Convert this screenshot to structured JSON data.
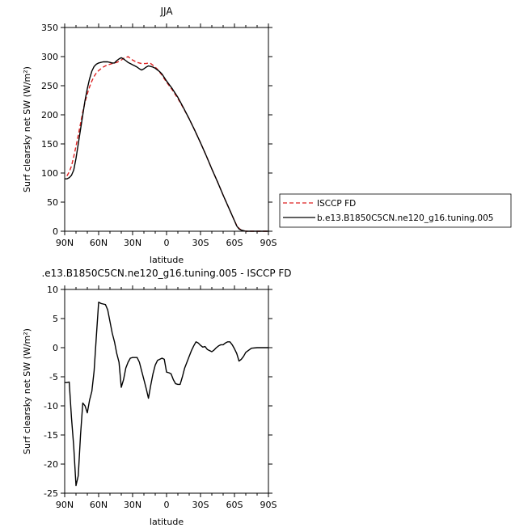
{
  "chart_data": [
    {
      "type": "line",
      "title": "JJA",
      "xlabel": "latitude",
      "ylabel": "Surf clearsky net SW (W/m²)",
      "xlim": [
        90,
        -90
      ],
      "ylim": [
        0,
        350
      ],
      "x_ticks": [
        90,
        60,
        30,
        0,
        -30,
        -60,
        -90
      ],
      "x_tick_labels": [
        "90N",
        "60N",
        "30N",
        "0",
        "30S",
        "60S",
        "90S"
      ],
      "y_ticks": [
        0,
        50,
        100,
        150,
        200,
        250,
        300,
        350
      ],
      "y_tick_labels": [
        "0",
        "50",
        "100",
        "150",
        "200",
        "250",
        "300",
        "350"
      ],
      "legend": {
        "placement": "right",
        "entries": [
          {
            "label": "ISCCP FD",
            "color": "#dd2222",
            "dash": true
          },
          {
            "label": "b.e13.B1850C5CN.ne120_g16.tuning.005",
            "color": "#000000",
            "dash": false
          }
        ]
      },
      "series": [
        {
          "name": "ISCCP FD",
          "color": "#dd2222",
          "dashed": true,
          "x": [
            88,
            86,
            84,
            82,
            80,
            78,
            76,
            74,
            72,
            70,
            68,
            66,
            64,
            62,
            60,
            58,
            56,
            54,
            52,
            50,
            48,
            46,
            44,
            42,
            40,
            38,
            36,
            34,
            32,
            30,
            28,
            26,
            24,
            22,
            20,
            18,
            16,
            14,
            12,
            10,
            8,
            6,
            4,
            2,
            0,
            -5,
            -10,
            -15,
            -20,
            -25,
            -30,
            -35,
            -40,
            -45,
            -50,
            -55,
            -60,
            -62,
            -64,
            -66,
            -68,
            -70,
            -75,
            -80,
            -85,
            -90
          ],
          "y": [
            95,
            102,
            112,
            128,
            146,
            165,
            185,
            205,
            222,
            236,
            248,
            258,
            266,
            272,
            276,
            279,
            282,
            284,
            286,
            287,
            288,
            289,
            290,
            292,
            294,
            297,
            298,
            300,
            297,
            294,
            292,
            290,
            289,
            288,
            288,
            288,
            289,
            288,
            285,
            282,
            278,
            273,
            268,
            262,
            256,
            243,
            228,
            211,
            193,
            173,
            152,
            130,
            107,
            85,
            62,
            40,
            18,
            10,
            5,
            2,
            1,
            0,
            0,
            0,
            0,
            0
          ]
        },
        {
          "name": "b.e13.B1850C5CN.ne120_g16.tuning.005",
          "color": "#000000",
          "dashed": false,
          "x": [
            90,
            88,
            86,
            84,
            82,
            80,
            78,
            76,
            74,
            72,
            70,
            68,
            66,
            64,
            62,
            60,
            58,
            56,
            54,
            52,
            50,
            48,
            46,
            44,
            42,
            40,
            38,
            36,
            34,
            32,
            30,
            28,
            26,
            24,
            22,
            20,
            18,
            16,
            14,
            12,
            10,
            8,
            6,
            4,
            2,
            0,
            -5,
            -10,
            -15,
            -20,
            -25,
            -30,
            -35,
            -40,
            -45,
            -50,
            -55,
            -60,
            -62,
            -64,
            -66,
            -68,
            -70,
            -75,
            -80,
            -85,
            -90
          ],
          "y": [
            90,
            90,
            92,
            96,
            105,
            125,
            150,
            175,
            200,
            225,
            245,
            262,
            275,
            283,
            287,
            289,
            290,
            291,
            291,
            291,
            290,
            289,
            289,
            293,
            296,
            298,
            296,
            293,
            290,
            288,
            286,
            284,
            282,
            279,
            277,
            279,
            282,
            284,
            283,
            282,
            280,
            277,
            274,
            270,
            264,
            258,
            245,
            230,
            212,
            193,
            173,
            152,
            130,
            107,
            85,
            62,
            40,
            18,
            9,
            4,
            2,
            1,
            0,
            0,
            0,
            0,
            0
          ]
        }
      ]
    },
    {
      "type": "line",
      "title": ".e13.B1850C5CN.ne120_g16.tuning.005 - ISCCP FD",
      "xlabel": "latitude",
      "ylabel": "Surf clearsky net SW (W/m²)",
      "xlim": [
        90,
        -90
      ],
      "ylim": [
        -25,
        10
      ],
      "x_ticks": [
        90,
        60,
        30,
        0,
        -30,
        -60,
        -90
      ],
      "x_tick_labels": [
        "90N",
        "60N",
        "30N",
        "0",
        "30S",
        "60S",
        "90S"
      ],
      "y_ticks": [
        -25,
        -20,
        -15,
        -10,
        -5,
        0,
        5,
        10
      ],
      "y_tick_labels": [
        "-25",
        "-20",
        "-15",
        "-10",
        "-5",
        "0",
        "5",
        "10"
      ],
      "series": [
        {
          "color": "#000000",
          "dashed": false,
          "x": [
            90,
            88,
            86,
            84,
            82,
            80,
            78,
            76,
            74,
            72,
            70,
            68,
            66,
            64,
            62,
            60,
            58,
            56,
            54,
            52,
            50,
            48,
            46,
            44,
            42,
            40,
            38,
            36,
            34,
            32,
            30,
            28,
            26,
            24,
            22,
            20,
            18,
            16,
            14,
            12,
            10,
            8,
            6,
            4,
            2,
            0,
            -2,
            -4,
            -6,
            -8,
            -10,
            -12,
            -14,
            -16,
            -18,
            -20,
            -22,
            -24,
            -26,
            -28,
            -30,
            -32,
            -34,
            -36,
            -38,
            -40,
            -42,
            -44,
            -46,
            -48,
            -50,
            -52,
            -54,
            -56,
            -58,
            -60,
            -62,
            -64,
            -66,
            -68,
            -70,
            -75,
            -80,
            -85,
            -90
          ],
          "y": [
            -6.0,
            -6.0,
            -5.9,
            -12.0,
            -17.0,
            -23.7,
            -22.0,
            -15.0,
            -9.5,
            -10.0,
            -11.2,
            -9.0,
            -7.5,
            -4.0,
            2.0,
            7.8,
            7.6,
            7.5,
            7.4,
            6.5,
            4.5,
            2.5,
            1.0,
            -1.0,
            -2.5,
            -6.8,
            -5.5,
            -3.5,
            -2.5,
            -1.8,
            -1.7,
            -1.7,
            -1.7,
            -2.5,
            -4.0,
            -5.5,
            -7.0,
            -8.7,
            -6.5,
            -4.5,
            -3.0,
            -2.2,
            -2.0,
            -1.8,
            -2.0,
            -4.2,
            -4.3,
            -4.5,
            -5.5,
            -6.2,
            -6.3,
            -6.3,
            -5.0,
            -3.5,
            -2.5,
            -1.5,
            -0.5,
            0.3,
            1.0,
            0.8,
            0.4,
            0.1,
            0.2,
            -0.3,
            -0.5,
            -0.7,
            -0.4,
            0.0,
            0.3,
            0.5,
            0.5,
            0.8,
            1.0,
            1.0,
            0.5,
            -0.2,
            -1.0,
            -2.3,
            -2.0,
            -1.5,
            -0.8,
            -0.1,
            0.0,
            0.0,
            0.0
          ]
        }
      ]
    }
  ]
}
